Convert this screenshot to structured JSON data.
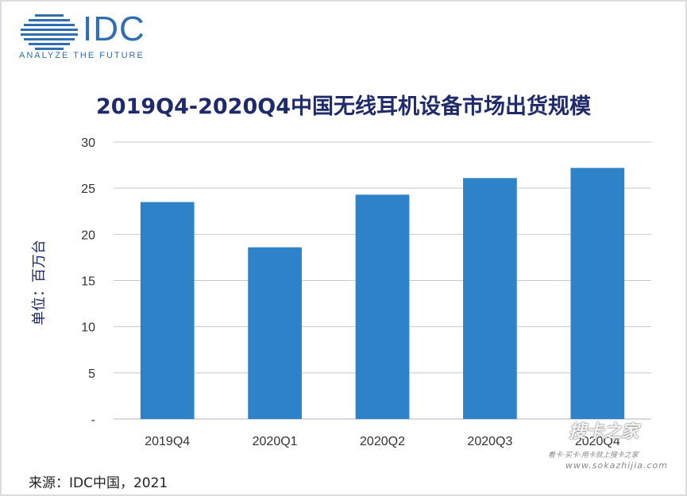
{
  "logo": {
    "name": "IDC",
    "tagline": "ANALYZE THE FUTURE"
  },
  "colors": {
    "bar": "#2e82c8",
    "logo": "#2f6fb1",
    "title": "#1f2a6b",
    "grid": "#c8c8d8"
  },
  "chart_data": {
    "type": "bar",
    "title": "2019Q4-2020Q4中国无线耳机设备市场出货规模",
    "xlabel": "",
    "ylabel": "单位：百万台",
    "categories": [
      "2019Q4",
      "2020Q1",
      "2020Q2",
      "2020Q3",
      "2020Q4"
    ],
    "values": [
      23.5,
      18.6,
      24.3,
      26.1,
      27.2
    ],
    "ylim": [
      0,
      30
    ],
    "yticks": [
      0,
      5,
      10,
      15,
      20,
      25,
      30
    ],
    "ytick_labels": [
      "-",
      "5",
      "10",
      "15",
      "20",
      "25",
      "30"
    ],
    "grid": true
  },
  "source": "来源：IDC中国，2021",
  "watermark": {
    "main": "搜卡之家",
    "sub1": "看卡·买卡·用卡就上搜卡之家",
    "sub2": "www.sokazhijia.com"
  }
}
